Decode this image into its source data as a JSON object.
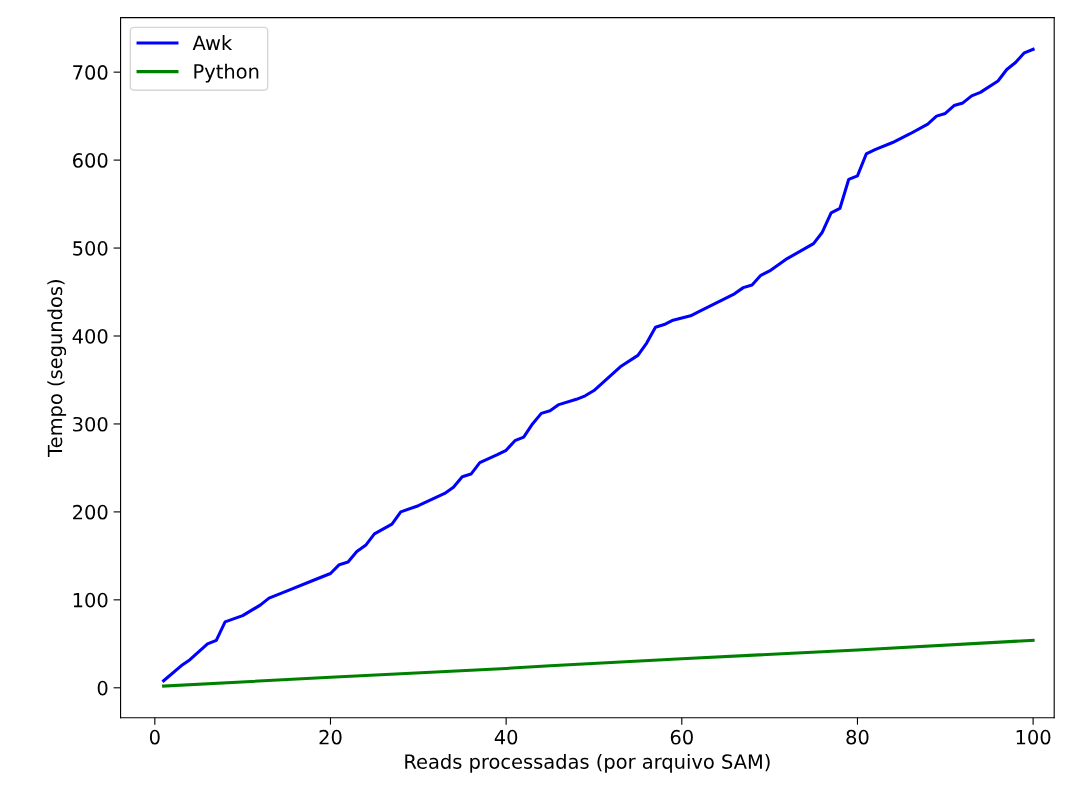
{
  "chart_data": {
    "type": "line",
    "xlabel": "Reads processadas (por arquivo SAM)",
    "ylabel": "Tempo (segundos)",
    "xlim": [
      -3.9,
      102.4
    ],
    "ylim": [
      -34,
      762
    ],
    "xticks": [
      0,
      20,
      40,
      60,
      80,
      100
    ],
    "yticks": [
      0,
      100,
      200,
      300,
      400,
      500,
      600,
      700
    ],
    "grid": false,
    "legend": "top left",
    "line_style": "solid",
    "marker": "none",
    "series": [
      {
        "name": "Awk",
        "color": "#0000ff",
        "x": [
          1,
          3,
          4,
          6,
          7,
          8,
          10,
          12,
          13,
          15,
          18,
          20,
          21,
          22,
          23,
          24,
          25,
          27,
          28,
          30,
          33,
          34,
          35,
          36,
          37,
          39,
          40,
          41,
          42,
          43,
          44,
          45,
          46,
          48,
          49,
          50,
          53,
          55,
          56,
          57,
          58,
          59,
          61,
          62,
          64,
          66,
          67,
          68,
          69,
          70,
          72,
          75,
          76,
          77,
          78,
          79,
          80,
          81,
          82,
          84,
          86,
          88,
          89,
          90,
          91,
          92,
          93,
          94,
          96,
          97,
          98,
          99,
          100
        ],
        "values": [
          8,
          25,
          32,
          50,
          54,
          75,
          82,
          94,
          102,
          110,
          122,
          130,
          140,
          143,
          155,
          162,
          175,
          186,
          200,
          207,
          221,
          228,
          240,
          243,
          256,
          265,
          270,
          281,
          285,
          300,
          312,
          315,
          322,
          328,
          332,
          338,
          365,
          378,
          392,
          410,
          413,
          418,
          423,
          428,
          438,
          448,
          455,
          458,
          469,
          474,
          488,
          505,
          518,
          540,
          545,
          578,
          582,
          607,
          612,
          620,
          630,
          641,
          650,
          653,
          662,
          665,
          673,
          677,
          690,
          703,
          711,
          722,
          726
        ]
      },
      {
        "name": "Python",
        "color": "#008000",
        "x": [
          1,
          20,
          40,
          45,
          60,
          80,
          100
        ],
        "values": [
          2,
          12,
          22,
          25,
          33,
          43,
          54
        ]
      }
    ]
  }
}
